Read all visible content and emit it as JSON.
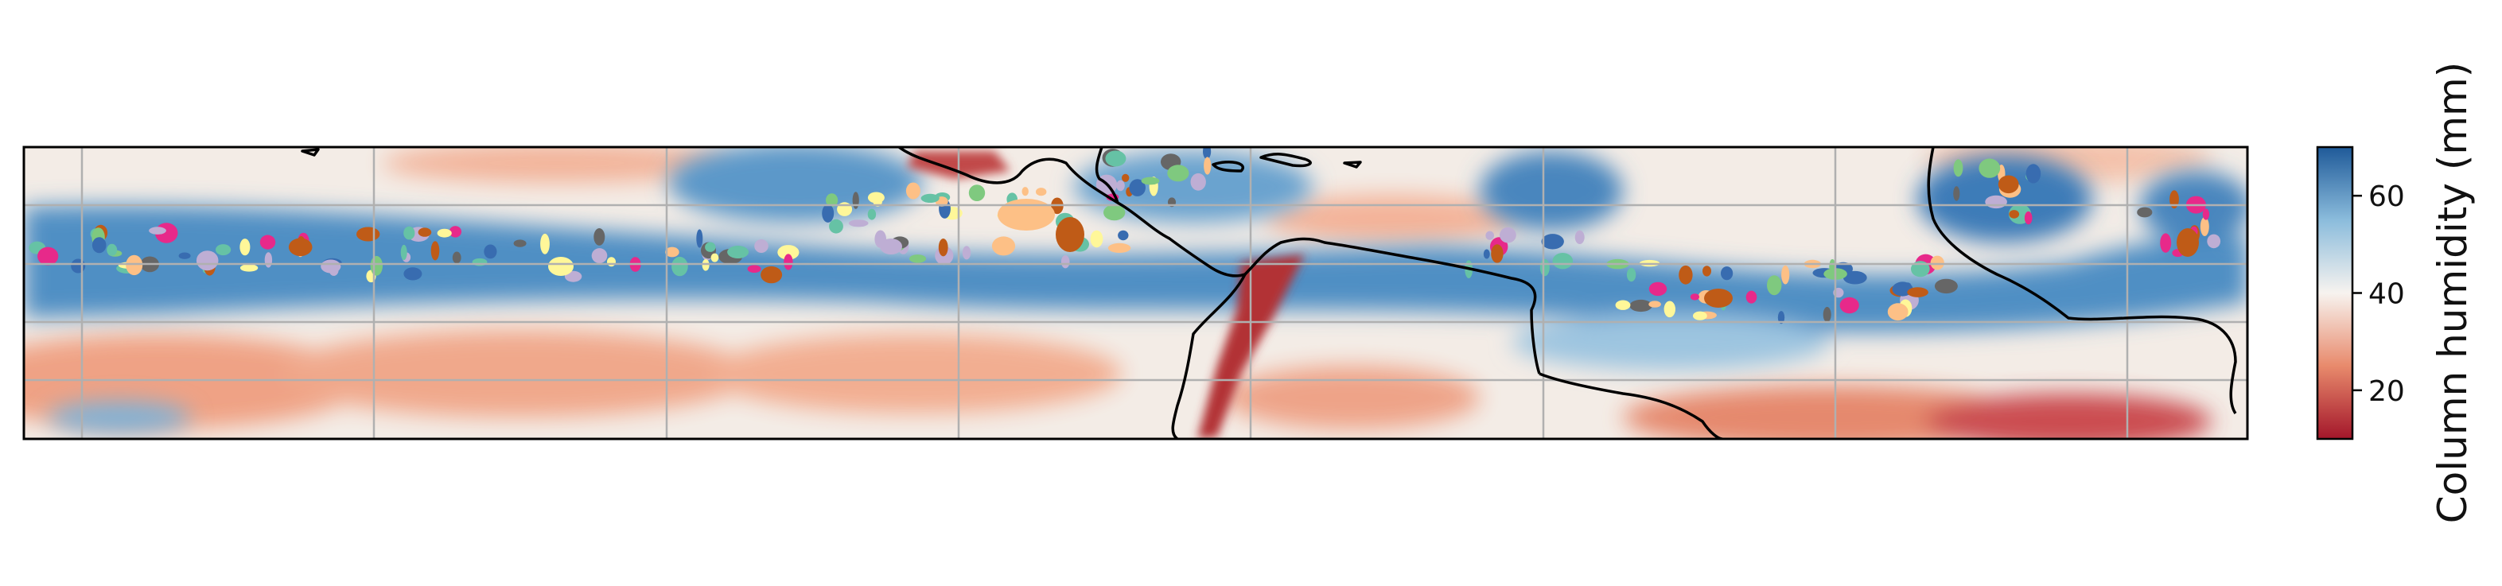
{
  "figure": {
    "type": "geographic map",
    "description_visible": "tropical belt map of column humidity with coastlines, lat/lon gridlines and colored object patches",
    "gridlines": true
  },
  "colorbar": {
    "label": "Column humidity (mm)",
    "ticks": [
      "20",
      "40",
      "60"
    ],
    "tick_values": [
      20,
      40,
      60
    ],
    "range": [
      10,
      70
    ],
    "colormap": "RdBu",
    "colors": {
      "low": "#a3162a",
      "mid_low": "#e88a6c",
      "mid": "#f7f3ef",
      "mid_high": "#8bbcdc",
      "high": "#1f5a99"
    }
  },
  "map_colors": {
    "coastline": "#000000",
    "grid": "#b0b0b0",
    "object_palette": [
      "#66c2a5",
      "#e7298a",
      "#fdc086",
      "#beaed4",
      "#fff799",
      "#bf5b17",
      "#7fc97f",
      "#666666",
      "#386cb0"
    ]
  }
}
